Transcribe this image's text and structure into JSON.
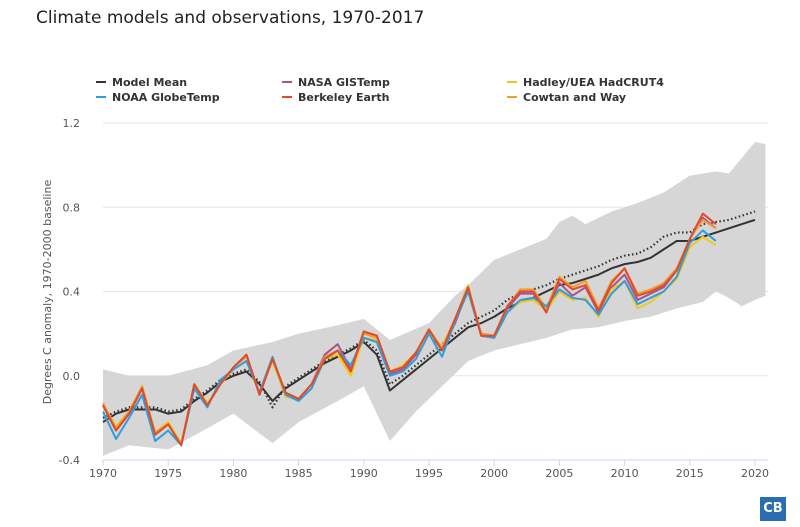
{
  "chart_data": {
    "type": "line",
    "title": "Climate models and observations, 1970-2017",
    "ylabel": "Degrees C anomaly, 1970-2000 baseline",
    "xlabel": "",
    "xlim": [
      1970,
      2020.8
    ],
    "ylim": [
      -0.4,
      1.2
    ],
    "xticks": [
      1970,
      1975,
      1980,
      1985,
      1990,
      1995,
      2000,
      2005,
      2010,
      2015,
      2020
    ],
    "yticks": [
      -0.4,
      0.0,
      0.4,
      0.8,
      1.2
    ],
    "ytick_labels": [
      "-0.4",
      "0.0",
      "0.4",
      "0.8",
      "1.2"
    ],
    "grid": true,
    "legend_position": "top",
    "model_range": {
      "color": "#d6d6d6",
      "upper": [
        [
          1970,
          0.03
        ],
        [
          1972,
          0.0
        ],
        [
          1975,
          0.0
        ],
        [
          1978,
          0.05
        ],
        [
          1980,
          0.12
        ],
        [
          1983,
          0.16
        ],
        [
          1985,
          0.2
        ],
        [
          1988,
          0.24
        ],
        [
          1990,
          0.27
        ],
        [
          1992,
          0.17
        ],
        [
          1995,
          0.25
        ],
        [
          1997,
          0.38
        ],
        [
          1998,
          0.43
        ],
        [
          2000,
          0.55
        ],
        [
          2002,
          0.6
        ],
        [
          2004,
          0.65
        ],
        [
          2005,
          0.73
        ],
        [
          2006,
          0.76
        ],
        [
          2007,
          0.72
        ],
        [
          2009,
          0.78
        ],
        [
          2011,
          0.82
        ],
        [
          2013,
          0.87
        ],
        [
          2015,
          0.95
        ],
        [
          2017,
          0.97
        ],
        [
          2018,
          0.96
        ],
        [
          2020,
          1.11
        ],
        [
          2020.8,
          1.1
        ]
      ],
      "lower": [
        [
          1970,
          -0.38
        ],
        [
          1972,
          -0.33
        ],
        [
          1975,
          -0.35
        ],
        [
          1978,
          -0.25
        ],
        [
          1980,
          -0.18
        ],
        [
          1983,
          -0.32
        ],
        [
          1985,
          -0.22
        ],
        [
          1988,
          -0.12
        ],
        [
          1990,
          -0.05
        ],
        [
          1992,
          -0.31
        ],
        [
          1994,
          -0.17
        ],
        [
          1996,
          -0.05
        ],
        [
          1998,
          0.07
        ],
        [
          2000,
          0.12
        ],
        [
          2002,
          0.15
        ],
        [
          2004,
          0.18
        ],
        [
          2006,
          0.22
        ],
        [
          2008,
          0.23
        ],
        [
          2010,
          0.26
        ],
        [
          2012,
          0.28
        ],
        [
          2014,
          0.32
        ],
        [
          2016,
          0.35
        ],
        [
          2017,
          0.4
        ],
        [
          2018,
          0.37
        ],
        [
          2019,
          0.33
        ],
        [
          2020,
          0.36
        ],
        [
          2020.8,
          0.38
        ]
      ]
    },
    "model_mean_start": 1970,
    "model_mean": [
      -0.22,
      -0.18,
      -0.16,
      -0.16,
      -0.16,
      -0.18,
      -0.17,
      -0.12,
      -0.08,
      -0.03,
      0.0,
      0.02,
      -0.04,
      -0.12,
      -0.06,
      -0.02,
      0.02,
      0.06,
      0.09,
      0.12,
      0.16,
      0.1,
      -0.07,
      -0.02,
      0.03,
      0.08,
      0.13,
      0.18,
      0.23,
      0.25,
      0.28,
      0.32,
      0.35,
      0.37,
      0.4,
      0.43,
      0.44,
      0.46,
      0.48,
      0.51,
      0.53,
      0.54,
      0.56,
      0.6,
      0.64,
      0.64,
      0.66,
      0.68,
      0.7,
      0.72,
      0.74
    ],
    "model_mean_dotted": [
      -0.2,
      -0.17,
      -0.15,
      -0.15,
      -0.15,
      -0.17,
      -0.16,
      -0.11,
      -0.07,
      -0.02,
      0.01,
      0.03,
      -0.03,
      -0.15,
      -0.05,
      -0.01,
      0.03,
      0.07,
      0.1,
      0.13,
      0.17,
      0.12,
      -0.04,
      0.0,
      0.05,
      0.1,
      0.15,
      0.2,
      0.25,
      0.28,
      0.31,
      0.36,
      0.39,
      0.41,
      0.43,
      0.46,
      0.48,
      0.5,
      0.52,
      0.55,
      0.57,
      0.58,
      0.61,
      0.66,
      0.68,
      0.68,
      0.72,
      0.73,
      0.74,
      0.76,
      0.78
    ],
    "obs_start": 1970,
    "series": [
      {
        "name": "NASA GISTemp",
        "color": "#a8538f",
        "values": [
          -0.14,
          -0.26,
          -0.18,
          -0.06,
          -0.28,
          -0.23,
          -0.33,
          -0.04,
          -0.14,
          -0.04,
          0.04,
          0.1,
          -0.09,
          0.08,
          -0.08,
          -0.11,
          -0.04,
          0.1,
          0.15,
          0.03,
          0.21,
          0.19,
          0.01,
          0.03,
          0.1,
          0.21,
          0.12,
          0.25,
          0.41,
          0.2,
          0.19,
          0.32,
          0.39,
          0.39,
          0.31,
          0.44,
          0.38,
          0.42,
          0.3,
          0.42,
          0.48,
          0.36,
          0.39,
          0.42,
          0.5,
          0.65,
          0.75,
          0.7
        ]
      },
      {
        "name": "Hadley/UEA HadCRUT4",
        "color": "#f5c518",
        "values": [
          -0.14,
          -0.24,
          -0.17,
          -0.05,
          -0.27,
          -0.22,
          -0.32,
          -0.04,
          -0.13,
          -0.04,
          0.03,
          0.07,
          -0.08,
          0.07,
          -0.1,
          -0.11,
          -0.06,
          0.08,
          0.1,
          0.0,
          0.18,
          0.17,
          0.02,
          0.05,
          0.11,
          0.2,
          0.14,
          0.27,
          0.43,
          0.19,
          0.18,
          0.3,
          0.35,
          0.36,
          0.31,
          0.4,
          0.36,
          0.37,
          0.28,
          0.41,
          0.45,
          0.32,
          0.35,
          0.4,
          0.46,
          0.61,
          0.66,
          0.62
        ]
      },
      {
        "name": "Cowtan and Way",
        "color": "#f29b30",
        "values": [
          -0.13,
          -0.25,
          -0.17,
          -0.05,
          -0.27,
          -0.23,
          -0.33,
          -0.04,
          -0.14,
          -0.04,
          0.04,
          0.09,
          -0.08,
          0.08,
          -0.08,
          -0.11,
          -0.04,
          0.09,
          0.12,
          0.02,
          0.2,
          0.18,
          0.02,
          0.04,
          0.11,
          0.22,
          0.13,
          0.27,
          0.42,
          0.2,
          0.19,
          0.33,
          0.41,
          0.41,
          0.32,
          0.47,
          0.42,
          0.45,
          0.32,
          0.45,
          0.51,
          0.39,
          0.41,
          0.44,
          0.51,
          0.65,
          0.74,
          0.7
        ]
      },
      {
        "name": "NOAA GlobeTemp",
        "color": "#2f9ee0",
        "values": [
          -0.17,
          -0.3,
          -0.2,
          -0.09,
          -0.31,
          -0.26,
          -0.33,
          -0.06,
          -0.15,
          -0.02,
          0.03,
          0.07,
          -0.08,
          0.09,
          -0.09,
          -0.12,
          -0.06,
          0.08,
          0.12,
          0.05,
          0.18,
          0.16,
          0.0,
          0.02,
          0.08,
          0.2,
          0.09,
          0.26,
          0.4,
          0.19,
          0.18,
          0.3,
          0.36,
          0.37,
          0.33,
          0.41,
          0.37,
          0.36,
          0.29,
          0.39,
          0.45,
          0.34,
          0.37,
          0.4,
          0.47,
          0.63,
          0.69,
          0.64
        ]
      },
      {
        "name": "Berkeley Earth",
        "color": "#e04b2b",
        "values": [
          -0.14,
          -0.26,
          -0.18,
          -0.06,
          -0.28,
          -0.23,
          -0.33,
          -0.04,
          -0.14,
          -0.04,
          0.04,
          0.1,
          -0.09,
          0.08,
          -0.08,
          -0.11,
          -0.04,
          0.08,
          0.12,
          0.02,
          0.21,
          0.19,
          0.02,
          0.04,
          0.11,
          0.22,
          0.12,
          0.27,
          0.42,
          0.19,
          0.19,
          0.33,
          0.4,
          0.4,
          0.3,
          0.46,
          0.41,
          0.43,
          0.31,
          0.44,
          0.51,
          0.38,
          0.4,
          0.43,
          0.5,
          0.65,
          0.77,
          0.72
        ]
      }
    ],
    "legend": [
      {
        "label": "Model Mean",
        "color": "#333333"
      },
      {
        "label": "NASA GISTemp",
        "color": "#a8538f"
      },
      {
        "label": "Hadley/UEA HadCRUT4",
        "color": "#f5c518"
      },
      {
        "label": "NOAA GlobeTemp",
        "color": "#2f9ee0"
      },
      {
        "label": "Berkeley Earth",
        "color": "#e04b2b"
      },
      {
        "label": "Cowtan and Way",
        "color": "#f29b30"
      }
    ]
  },
  "logo": "CB"
}
